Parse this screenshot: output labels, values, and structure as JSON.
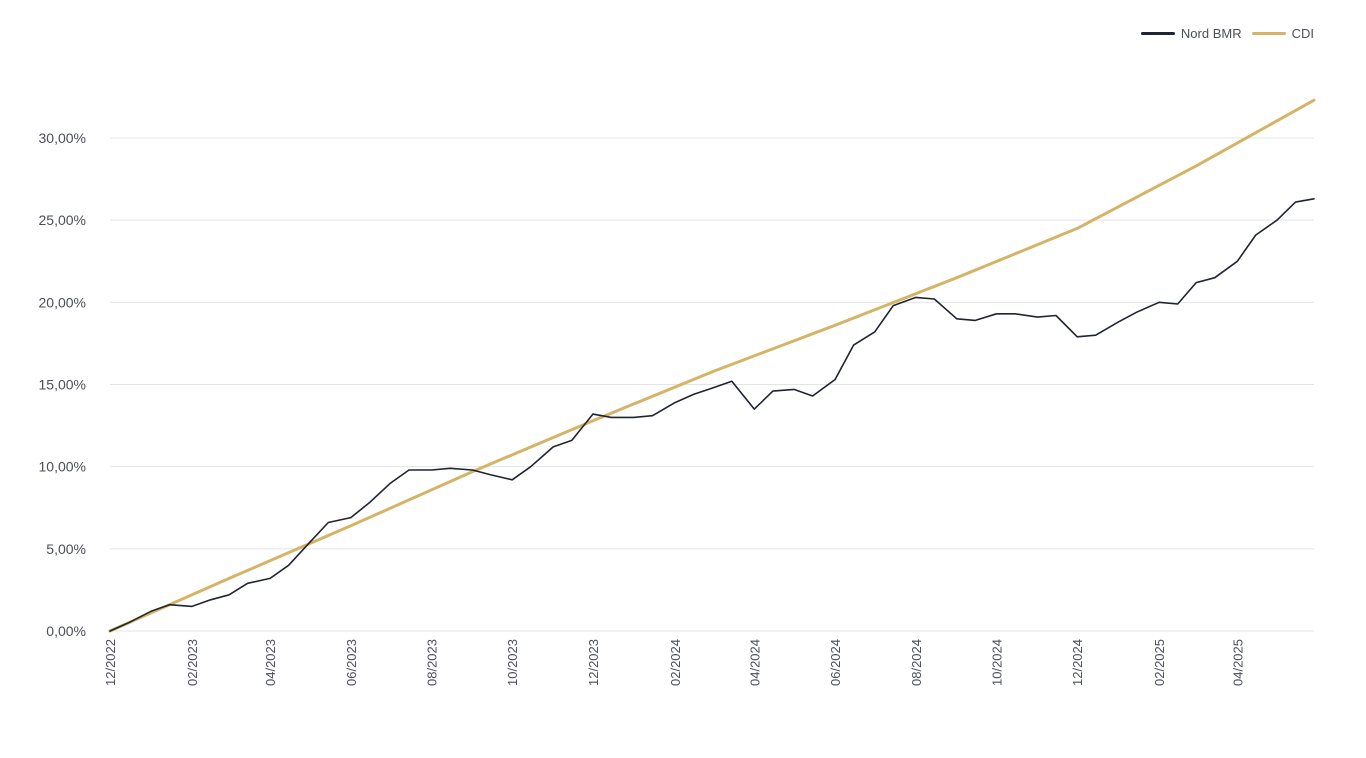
{
  "legend": {
    "items": [
      {
        "label": "Nord BMR",
        "color": "#1f2430"
      },
      {
        "label": "CDI",
        "color": "#d5b468"
      }
    ]
  },
  "chart_data": {
    "type": "line",
    "xlabel": "",
    "ylabel": "",
    "ylim": [
      0,
      30
    ],
    "y_ticks": [
      "0,00%",
      "5,00%",
      "10,00%",
      "15,00%",
      "20,00%",
      "25,00%",
      "30,00%"
    ],
    "y_tick_values": [
      0,
      5,
      10,
      15,
      20,
      25,
      30
    ],
    "x_ticks": [
      "12/2022",
      "02/2023",
      "04/2023",
      "06/2023",
      "08/2023",
      "10/2023",
      "12/2023",
      "02/2024",
      "04/2024",
      "06/2024",
      "08/2024",
      "10/2024",
      "12/2024",
      "02/2025",
      "04/2025"
    ],
    "x_tick_values": [
      "2022-12-01",
      "2023-02-01",
      "2023-04-01",
      "2023-06-01",
      "2023-08-01",
      "2023-10-01",
      "2023-12-01",
      "2024-02-01",
      "2024-04-01",
      "2024-06-01",
      "2024-08-01",
      "2024-10-01",
      "2024-12-01",
      "2025-02-01",
      "2025-04-01"
    ],
    "x_range": [
      "2022-12-01",
      "2025-05-29"
    ],
    "grid": true,
    "legend_position": "top-right",
    "series": [
      {
        "name": "Nord BMR",
        "color": "#1f2430",
        "x": [
          "2022-12-01",
          "2022-12-15",
          "2023-01-01",
          "2023-01-15",
          "2023-02-01",
          "2023-02-15",
          "2023-03-01",
          "2023-03-15",
          "2023-04-01",
          "2023-04-15",
          "2023-05-01",
          "2023-05-15",
          "2023-06-01",
          "2023-06-15",
          "2023-07-01",
          "2023-07-15",
          "2023-08-01",
          "2023-08-15",
          "2023-09-01",
          "2023-09-15",
          "2023-10-01",
          "2023-10-15",
          "2023-11-01",
          "2023-11-15",
          "2023-12-01",
          "2023-12-15",
          "2024-01-01",
          "2024-01-15",
          "2024-02-01",
          "2024-02-15",
          "2024-03-01",
          "2024-03-15",
          "2024-04-01",
          "2024-04-15",
          "2024-05-01",
          "2024-05-15",
          "2024-06-01",
          "2024-06-15",
          "2024-07-01",
          "2024-07-15",
          "2024-08-01",
          "2024-08-15",
          "2024-09-01",
          "2024-09-15",
          "2024-10-01",
          "2024-10-15",
          "2024-11-01",
          "2024-11-15",
          "2024-12-01",
          "2024-12-15",
          "2025-01-01",
          "2025-01-15",
          "2025-02-01",
          "2025-02-15",
          "2025-03-01",
          "2025-03-15",
          "2025-04-01",
          "2025-04-15",
          "2025-05-01",
          "2025-05-15",
          "2025-05-29"
        ],
        "values": [
          0.0,
          0.5,
          1.2,
          1.6,
          1.5,
          1.9,
          2.2,
          2.9,
          3.2,
          4.0,
          5.4,
          6.6,
          6.9,
          7.8,
          9.0,
          9.8,
          9.8,
          9.9,
          9.8,
          9.5,
          9.2,
          10.0,
          11.2,
          11.6,
          13.2,
          13.0,
          13.0,
          13.1,
          13.9,
          14.4,
          14.8,
          15.2,
          13.5,
          14.6,
          14.7,
          14.3,
          15.3,
          17.4,
          18.2,
          19.8,
          20.3,
          20.2,
          19.0,
          18.9,
          19.3,
          19.3,
          19.1,
          19.2,
          17.9,
          18.0,
          18.8,
          19.4,
          20.0,
          19.9,
          21.2,
          21.5,
          22.5,
          24.1,
          25.0,
          26.1,
          26.3
        ]
      },
      {
        "name": "CDI",
        "color": "#d5b468",
        "x": [
          "2022-12-01",
          "2023-03-01",
          "2023-06-01",
          "2023-09-01",
          "2023-12-01",
          "2024-03-01",
          "2024-06-01",
          "2024-09-01",
          "2024-12-01",
          "2025-03-01",
          "2025-05-29"
        ],
        "values": [
          0.0,
          3.2,
          6.4,
          9.7,
          12.8,
          15.8,
          18.6,
          21.5,
          24.5,
          28.3,
          32.3
        ]
      }
    ]
  }
}
